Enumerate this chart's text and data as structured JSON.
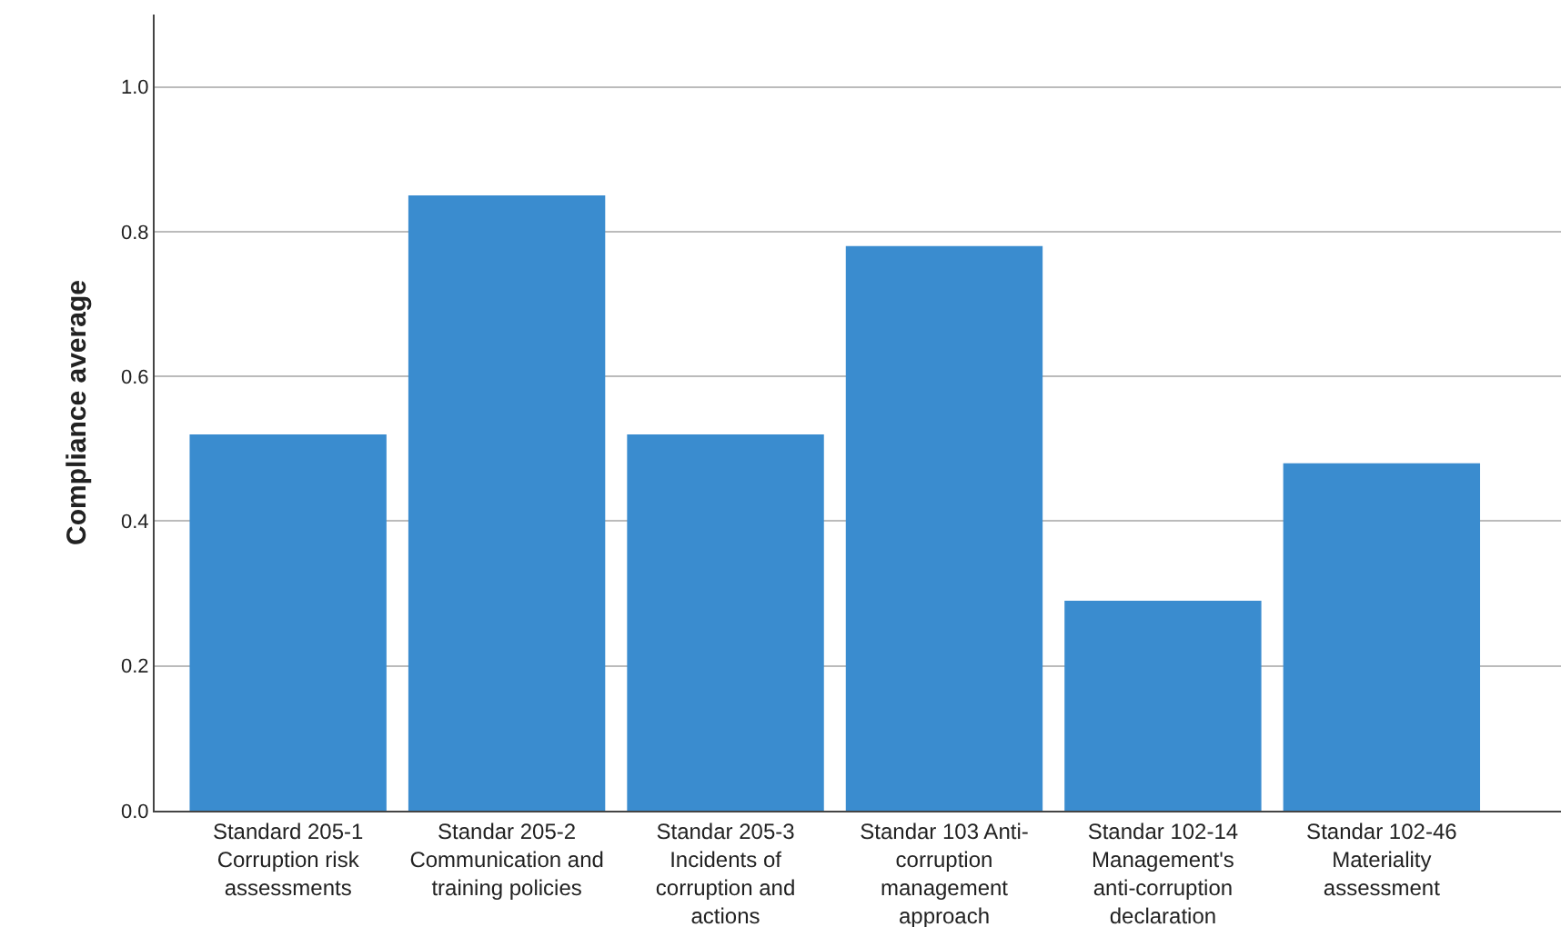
{
  "chart_data": {
    "type": "bar",
    "ylabel": "Compliance average",
    "categories": [
      "Standard 205-1 Corruption risk assessments",
      "Standar 205-2 Communication and training policies",
      "Standar 205-3 Incidents of corruption and actions",
      "Standar 103 Anti-corruption management approach",
      "Standar 102-14 Management's anti-corruption declaration",
      "Standar 102-46 Materiality assessment"
    ],
    "values": [
      0.52,
      0.85,
      0.52,
      0.78,
      0.29,
      0.48
    ],
    "color": "#3a8ccf",
    "ylim": [
      0,
      1.1
    ],
    "yticks": [
      {
        "value": 0,
        "label": "0.0"
      },
      {
        "value": 0.2,
        "label": "0.2"
      },
      {
        "value": 0.4,
        "label": "0.4"
      },
      {
        "value": 0.6,
        "label": "0.6"
      },
      {
        "value": 0.8,
        "label": "0.8"
      },
      {
        "value": 1.0,
        "label": "1.0"
      }
    ],
    "grid": "y"
  }
}
